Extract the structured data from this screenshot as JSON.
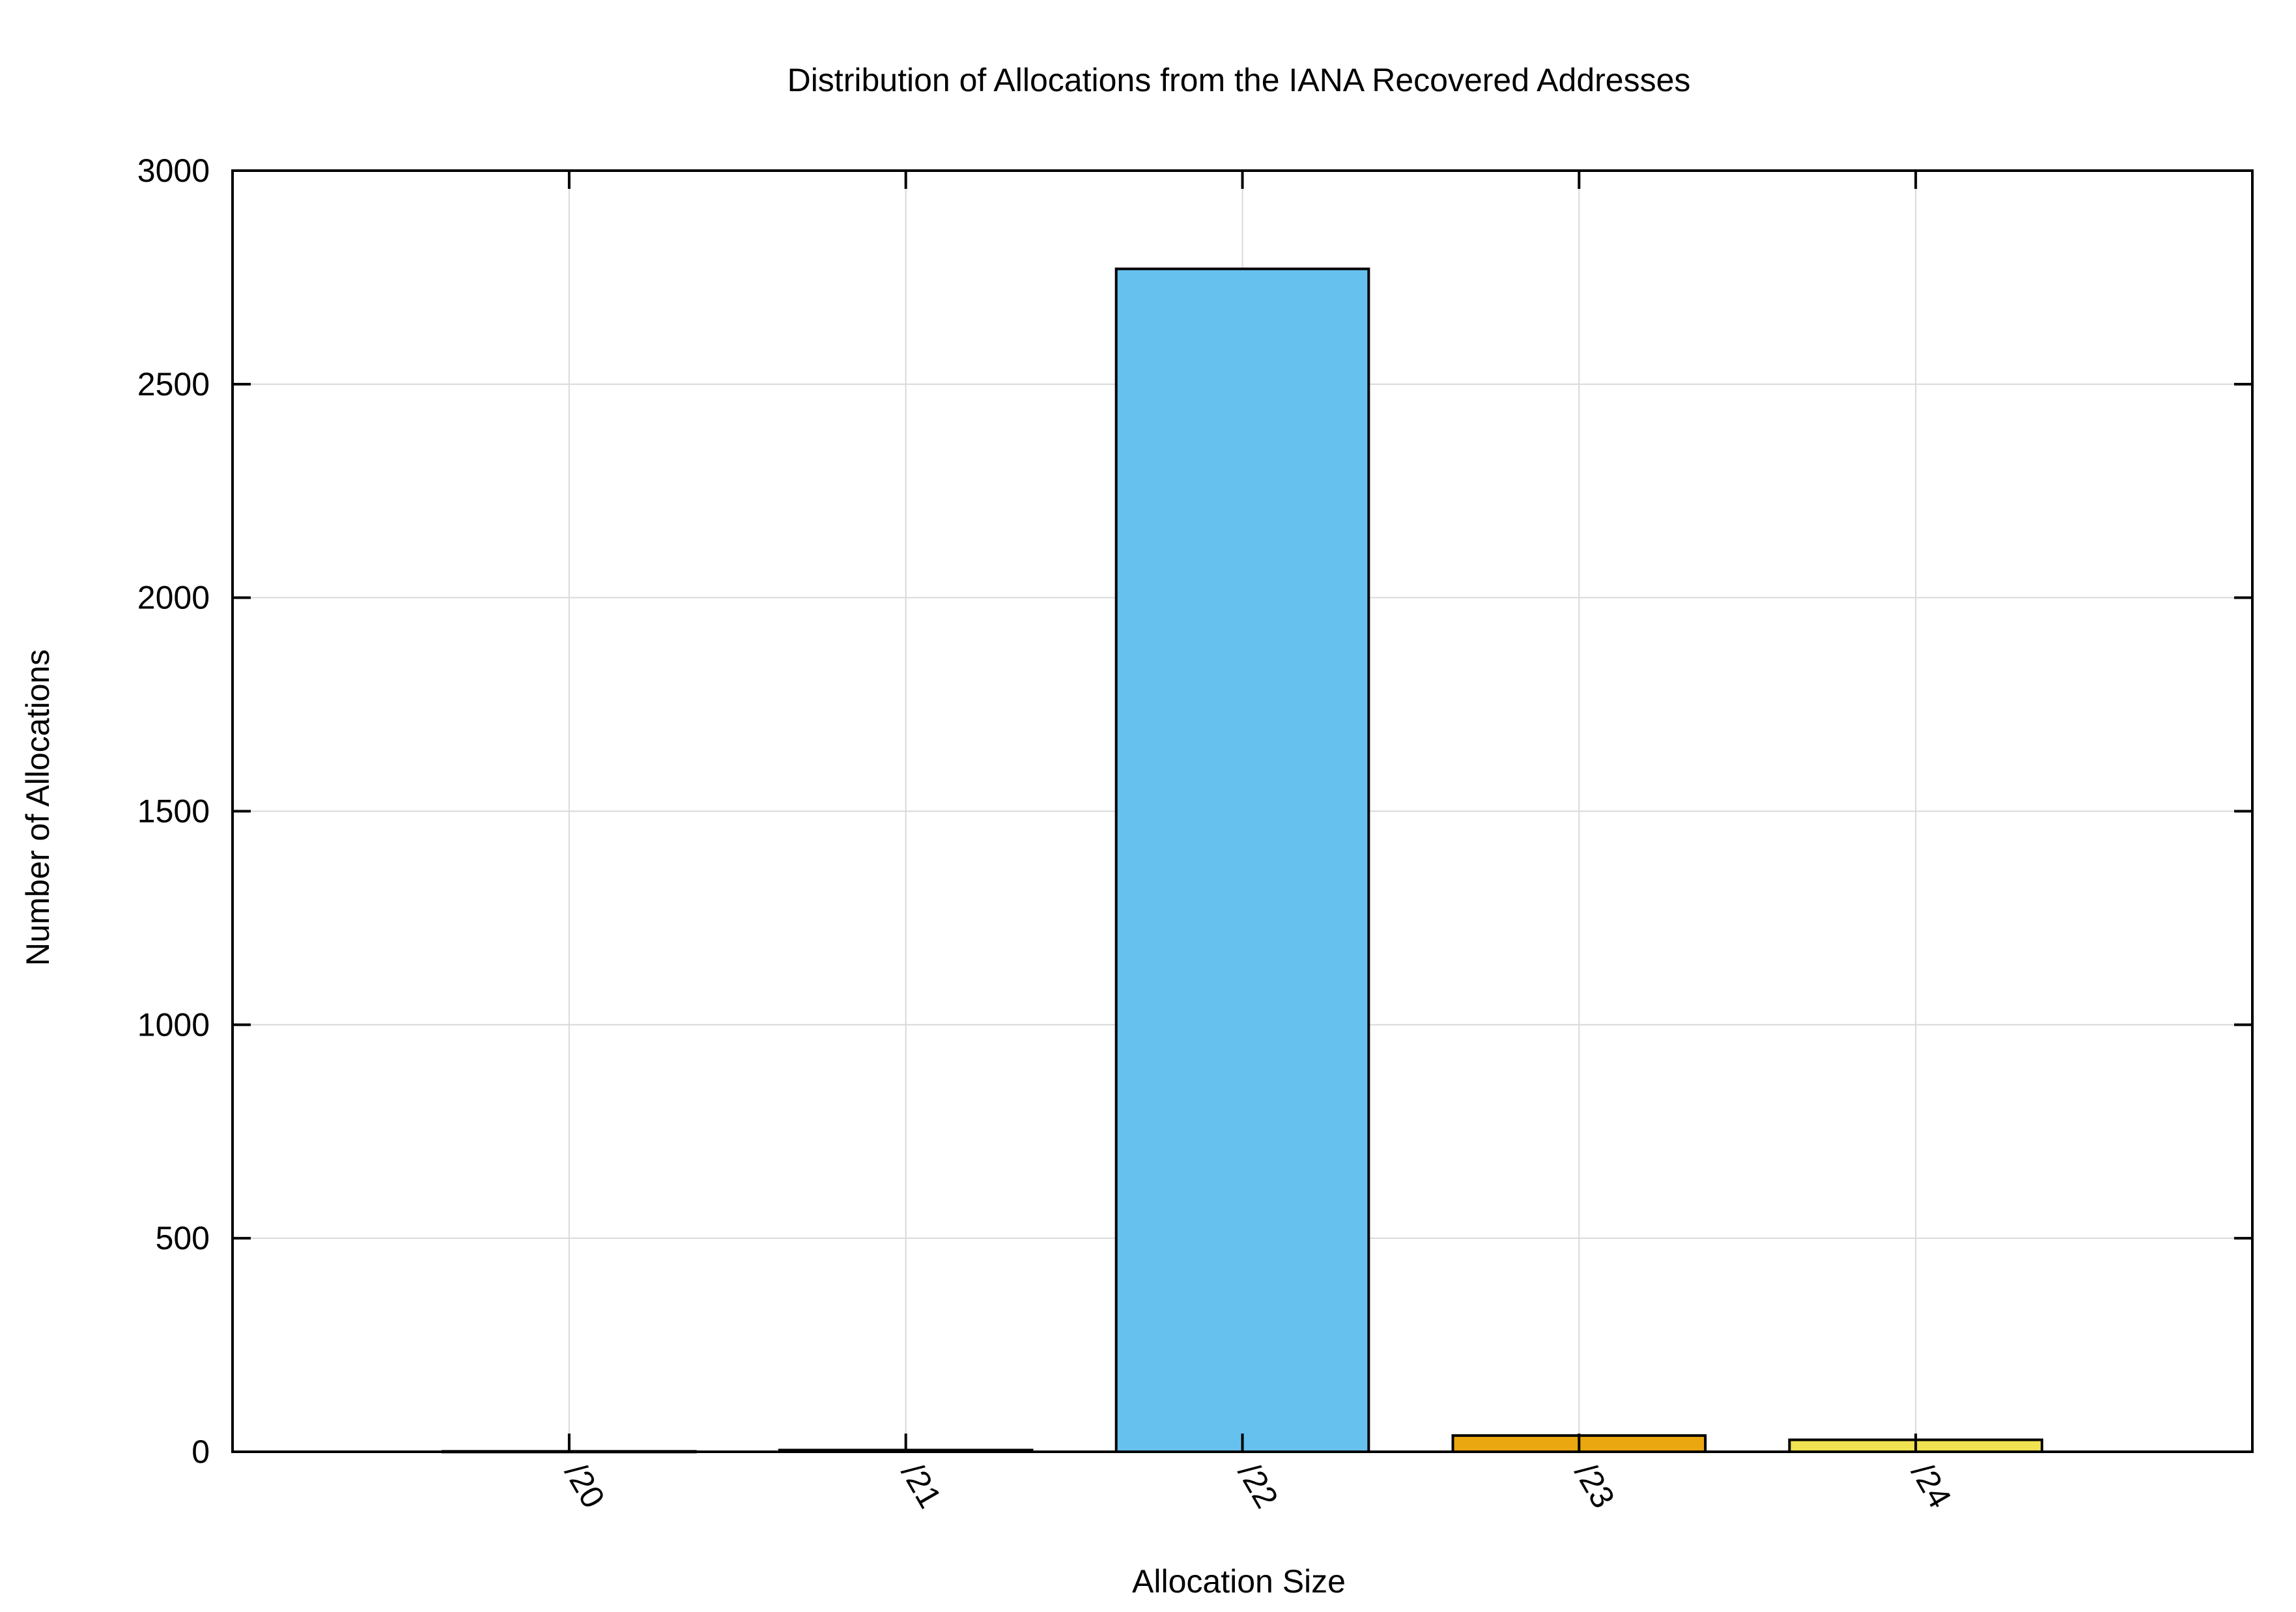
{
  "chart_data": {
    "type": "bar",
    "title": "Distribution of Allocations from the IANA Recovered Addresses",
    "xlabel": "Allocation Size",
    "ylabel": "Number of Allocations",
    "categories": [
      "/20",
      "/21",
      "/22",
      "/23",
      "/24"
    ],
    "values": [
      1,
      4,
      2770,
      38,
      28
    ],
    "bar_colors": [
      "#66c1ee",
      "#8a8a2a",
      "#66c1ee",
      "#eba70f",
      "#f1e251"
    ],
    "ylim": [
      0,
      3000
    ],
    "yticks": [
      0,
      500,
      1000,
      1500,
      2000,
      2500,
      3000
    ],
    "x_range_categories": [
      -1,
      5
    ],
    "grid": true,
    "legend": "none",
    "colors": {
      "grid": "#d9d9d9",
      "frame": "#000000",
      "bar_outline": "#000000"
    }
  }
}
